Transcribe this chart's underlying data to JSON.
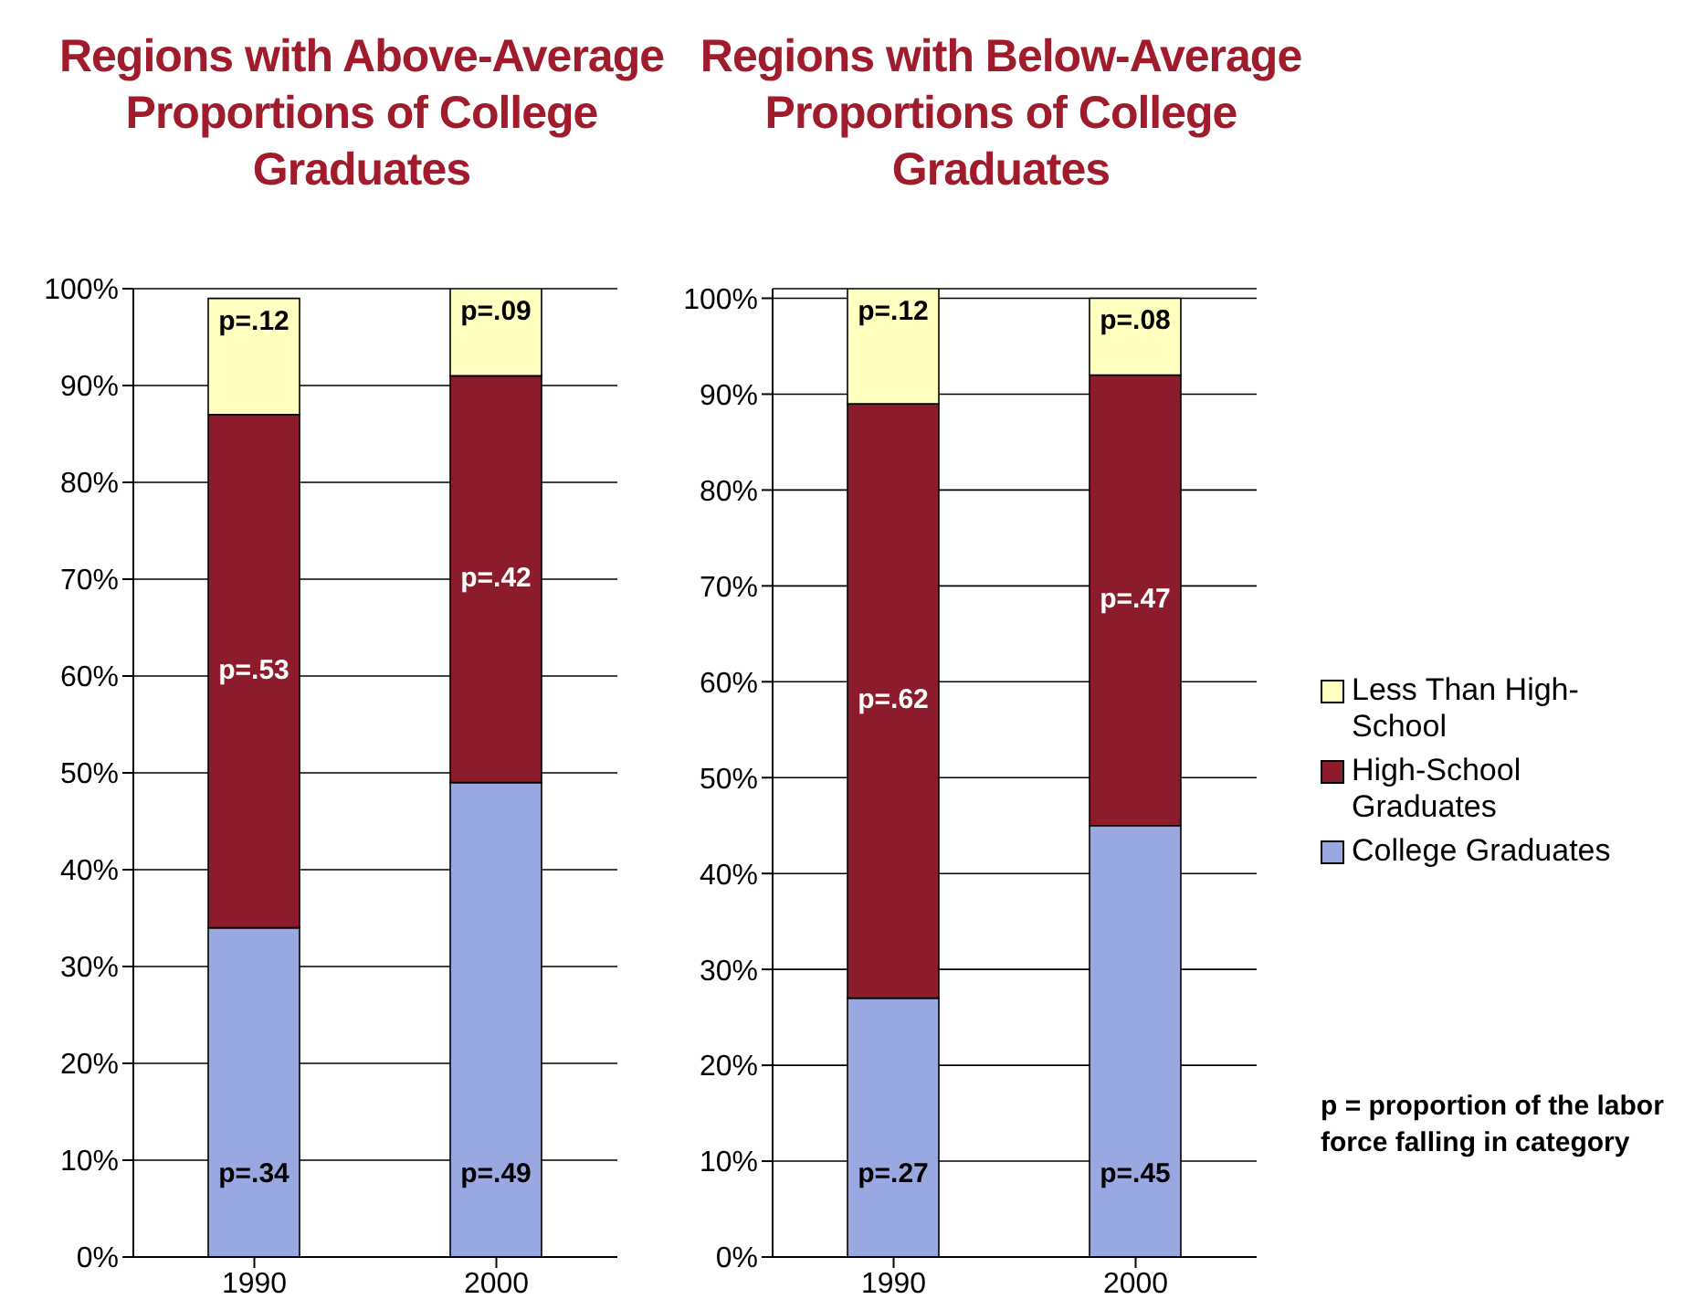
{
  "chart_data": [
    {
      "type": "bar",
      "title": "Regions with Above-Average Proportions of College Graduates",
      "categories": [
        "1990",
        "2000"
      ],
      "stacked": true,
      "series": [
        {
          "color": "#9aa8e2",
          "values": [
            0.34,
            0.49
          ],
          "value_labels": [
            "p=.34",
            "p=.49"
          ]
        },
        {
          "color": "#8c1c2c",
          "values": [
            0.53,
            0.42
          ],
          "value_labels": [
            "p=.53",
            "p=.42"
          ]
        },
        {
          "color": "#ffffc0",
          "values": [
            0.12,
            0.09
          ],
          "value_labels": [
            "p=.12",
            "p=.09"
          ]
        }
      ],
      "ylim": [
        0,
        1
      ],
      "yticks": [
        {
          "value": 0,
          "label": "0%"
        },
        {
          "value": 0.1,
          "label": "10%"
        },
        {
          "value": 0.2,
          "label": "20%"
        },
        {
          "value": 0.3,
          "label": "30%"
        },
        {
          "value": 0.4,
          "label": "40%"
        },
        {
          "value": 0.5,
          "label": "50%"
        },
        {
          "value": 0.6,
          "label": "60%"
        },
        {
          "value": 0.7,
          "label": "70%"
        },
        {
          "value": 0.8,
          "label": "80%"
        },
        {
          "value": 0.9,
          "label": "90%"
        },
        {
          "value": 1,
          "label": "100%"
        }
      ],
      "grid": "y"
    },
    {
      "type": "bar",
      "title": "Regions with Below-Average Proportions of College Graduates",
      "categories": [
        "1990",
        "2000"
      ],
      "stacked": true,
      "series": [
        {
          "name": "College Graduates",
          "color": "#9aa8e2",
          "values": [
            0.27,
            0.45
          ],
          "value_labels": [
            "p=.27",
            "p=.45"
          ]
        },
        {
          "name": "High-School Graduates",
          "color": "#8c1c2c",
          "values": [
            0.62,
            0.47
          ],
          "value_labels": [
            "p=.62",
            "p=.47"
          ]
        },
        {
          "name": "Less Than High-School",
          "color": "#ffffc0",
          "values": [
            0.12,
            0.08
          ],
          "value_labels": [
            "p=.12",
            "p=.08"
          ]
        }
      ],
      "ylim": [
        0,
        1.01
      ],
      "yticks": [
        {
          "value": 0,
          "label": "0%"
        },
        {
          "value": 0.1,
          "label": "10%"
        },
        {
          "value": 0.2,
          "label": "20%"
        },
        {
          "value": 0.3,
          "label": "30%"
        },
        {
          "value": 0.4,
          "label": "40%"
        },
        {
          "value": 0.5,
          "label": "50%"
        },
        {
          "value": 0.6,
          "label": "60%"
        },
        {
          "value": 0.7,
          "label": "70%"
        },
        {
          "value": 0.8,
          "label": "80%"
        },
        {
          "value": 0.9,
          "label": "90%"
        },
        {
          "value": 1,
          "label": "100%"
        }
      ],
      "grid": "y",
      "legend": "right",
      "annotations": [
        "p = proportion of the labor force falling in category"
      ]
    }
  ]
}
